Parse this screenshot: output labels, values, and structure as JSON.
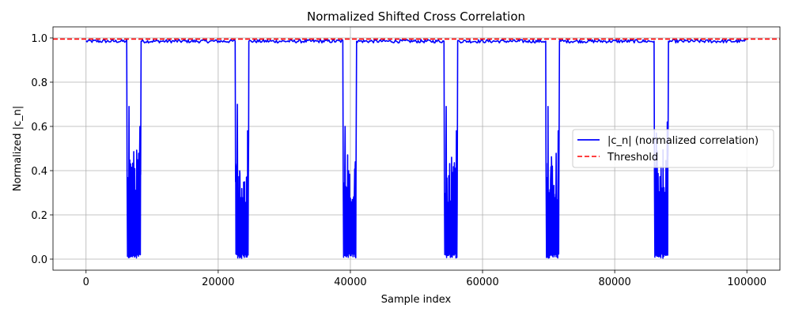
{
  "chart_data": {
    "type": "line",
    "title": "Normalized Shifted Cross Correlation",
    "xlabel": "Sample index",
    "ylabel": "Normalized |c_n|",
    "xlim": [
      -5000,
      105000
    ],
    "ylim": [
      -0.05,
      1.05
    ],
    "xticks": [
      0,
      20000,
      40000,
      60000,
      80000,
      100000
    ],
    "xtick_labels": [
      "0",
      "20000",
      "40000",
      "60000",
      "80000",
      "100000"
    ],
    "yticks": [
      0.0,
      0.2,
      0.4,
      0.6,
      0.8,
      1.0
    ],
    "ytick_labels": [
      "0.0",
      "0.2",
      "0.4",
      "0.6",
      "0.8",
      "1.0"
    ],
    "grid": true,
    "legend_position": "center-right",
    "series": [
      {
        "name": "|c_n| (normalized correlation)",
        "style": "solid",
        "color": "#0000ff",
        "baseline": 0.985,
        "x_range": [
          0,
          100000
        ],
        "dip_regions": [
          {
            "start": 6200,
            "end": 8300,
            "edge_peaks": [
              0.69,
              0.6
            ]
          },
          {
            "start": 22600,
            "end": 24600,
            "edge_peaks": [
              0.7,
              0.58
            ]
          },
          {
            "start": 38900,
            "end": 40900,
            "edge_peaks": [
              0.6,
              0.44
            ]
          },
          {
            "start": 54200,
            "end": 56200,
            "edge_peaks": [
              0.69,
              0.58
            ]
          },
          {
            "start": 69600,
            "end": 71600,
            "edge_peaks": [
              0.69,
              0.58
            ]
          },
          {
            "start": 86000,
            "end": 88100,
            "edge_peaks": [
              0.57,
              0.62
            ]
          }
        ],
        "dip_min": 0.0
      },
      {
        "name": "Threshold",
        "style": "dashed",
        "color": "#ff0000",
        "value": 0.995
      }
    ]
  }
}
